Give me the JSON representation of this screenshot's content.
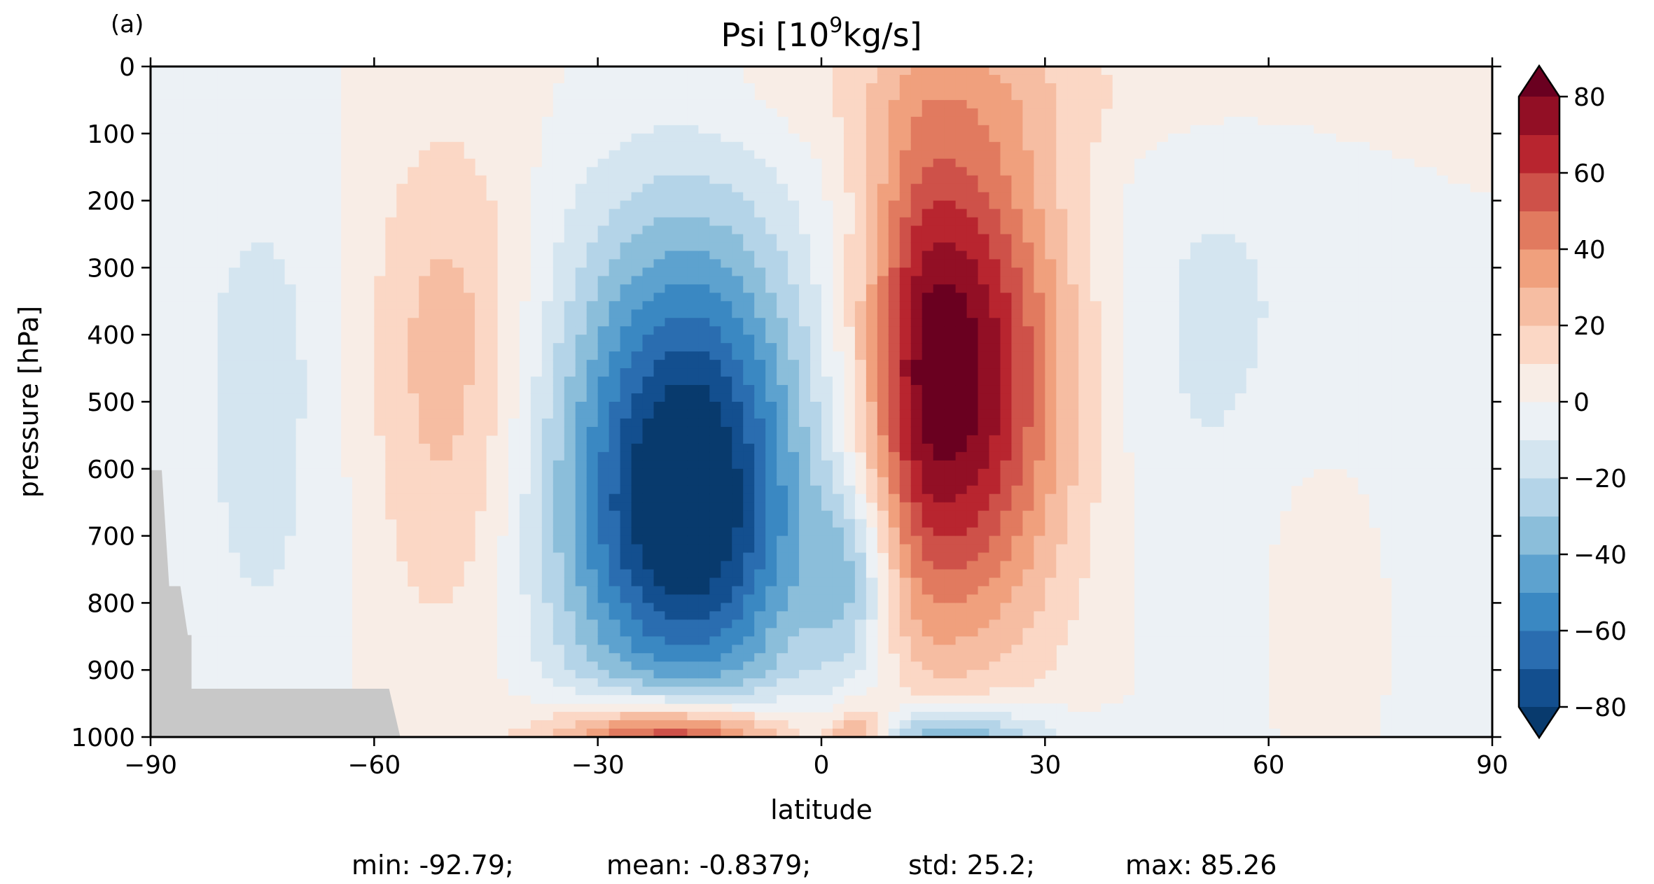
{
  "panel_label": "(a)",
  "title_main": "Psi [10",
  "title_sup": "9",
  "title_tail": "kg/s]",
  "stats": {
    "min": "min: -92.79;",
    "mean": "mean: -0.8379;",
    "std": "std: 25.2;",
    "max": "max: 85.26"
  },
  "chart_data": {
    "type": "heatmap",
    "title": "Psi [10^9kg/s]",
    "xlabel": "latitude",
    "ylabel": "pressure [hPa]",
    "xlim": [
      -90,
      90
    ],
    "ylim": [
      1000,
      0
    ],
    "y_inverted": true,
    "x_ticks": [
      -90,
      -60,
      -30,
      0,
      30,
      60,
      90
    ],
    "x_tick_labels": [
      "−90",
      "−60",
      "−30",
      "0",
      "30",
      "60",
      "90"
    ],
    "y_ticks": [
      0,
      100,
      200,
      300,
      400,
      500,
      600,
      700,
      800,
      900,
      1000
    ],
    "y_tick_labels": [
      "0",
      "100",
      "200",
      "300",
      "400",
      "500",
      "600",
      "700",
      "800",
      "900",
      "1000"
    ],
    "colorbar": {
      "levels": [
        -80,
        -70,
        -60,
        -50,
        -40,
        -30,
        -20,
        -10,
        0,
        10,
        20,
        30,
        40,
        50,
        60,
        70,
        80
      ],
      "ticks": [
        -80,
        -60,
        -40,
        -20,
        0,
        20,
        40,
        60,
        80
      ],
      "tick_labels": [
        "−80",
        "−60",
        "−40",
        "−20",
        "0",
        "20",
        "40",
        "60",
        "80"
      ],
      "extend": "both",
      "colormap": "RdBu_r",
      "colors": [
        "#083a6d",
        "#134f8f",
        "#2a6db0",
        "#3a88c2",
        "#5da2cf",
        "#8bbeda",
        "#b4d4e8",
        "#d4e5f0",
        "#ecf1f5",
        "#f8ede6",
        "#fbd7c5",
        "#f6bda2",
        "#f0a07d",
        "#e17a5f",
        "#ce5149",
        "#b8252f",
        "#920f25",
        "#6a0020"
      ],
      "missing_color": "#c8c8c8"
    },
    "features": [
      {
        "kind": "cell",
        "sign": "negative",
        "center_lat": -18,
        "center_p": 650,
        "peak": -92.79
      },
      {
        "kind": "cell",
        "sign": "positive",
        "center_lat": 16,
        "center_p": 450,
        "peak": 85.26
      },
      {
        "kind": "cell",
        "sign": "positive",
        "center_lat": -52,
        "center_p": 420,
        "peak": 25
      },
      {
        "kind": "cell",
        "sign": "negative",
        "center_lat": 50,
        "center_p": 380,
        "peak": -15
      },
      {
        "kind": "cell",
        "sign": "negative",
        "center_lat": -75,
        "center_p": 450,
        "peak": -15
      },
      {
        "kind": "surface",
        "sign": "positive",
        "center_lat": -20,
        "center_p": 1000,
        "peak": 80
      },
      {
        "kind": "surface",
        "sign": "negative",
        "center_lat": 18,
        "center_p": 1000,
        "peak": -50
      }
    ]
  }
}
